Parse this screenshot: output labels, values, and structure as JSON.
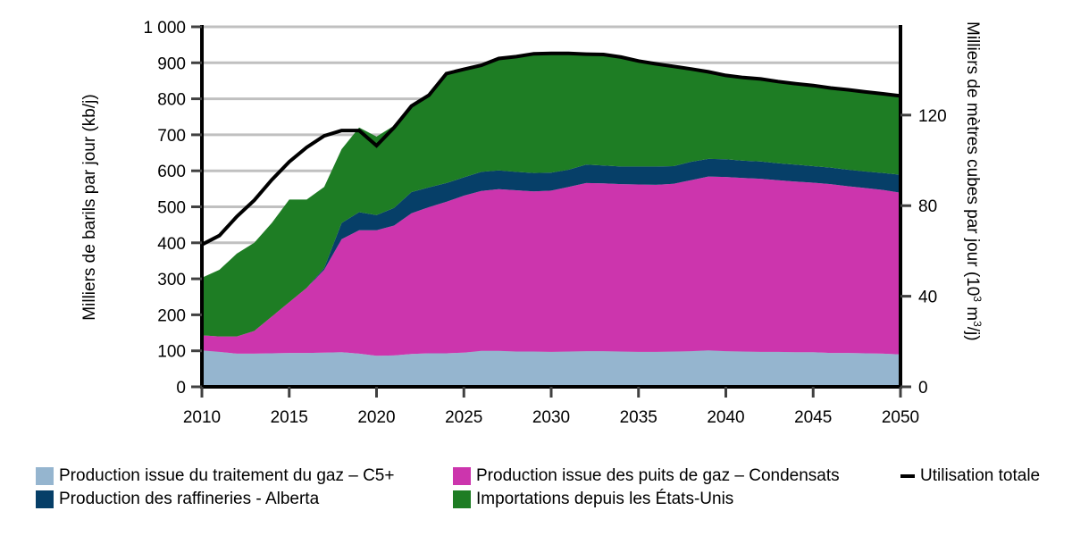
{
  "chart_data": {
    "type": "area",
    "stacked": true,
    "title": "",
    "xlabel": "",
    "ylabel": "Milliers de barils par jour (kb/j)",
    "y2label_main": "Milliers de mètres cubes par jour (10",
    "y2label_sup1": "3",
    "y2label_mid": " m",
    "y2label_sup2": "3",
    "y2label_end": "/j)",
    "xlim": [
      2010,
      2050
    ],
    "ylim": [
      0,
      1000
    ],
    "y2lim": [
      0,
      158.99
    ],
    "grid": true,
    "legend_position": "bottom",
    "x_ticks": [
      2010,
      2015,
      2020,
      2025,
      2030,
      2035,
      2040,
      2045,
      2050
    ],
    "x_tick_labels": [
      "2010",
      "2015",
      "2020",
      "2025",
      "2030",
      "2035",
      "2040",
      "2045",
      "2050"
    ],
    "y_ticks": [
      0,
      100,
      200,
      300,
      400,
      500,
      600,
      700,
      800,
      900,
      1000
    ],
    "y_tick_labels": [
      "0",
      "100",
      "200",
      "300",
      "400",
      "500",
      "600",
      "700",
      "800",
      "900",
      "1 000"
    ],
    "y2_ticks": [
      0,
      40,
      80,
      120
    ],
    "y2_tick_labels": [
      "0",
      "40",
      "80",
      "120"
    ],
    "x": [
      2010,
      2011,
      2012,
      2013,
      2014,
      2015,
      2016,
      2017,
      2018,
      2019,
      2020,
      2021,
      2022,
      2023,
      2024,
      2025,
      2026,
      2027,
      2028,
      2029,
      2030,
      2031,
      2032,
      2033,
      2034,
      2035,
      2036,
      2037,
      2038,
      2039,
      2040,
      2041,
      2042,
      2043,
      2044,
      2045,
      2046,
      2047,
      2048,
      2049,
      2050
    ],
    "series": [
      {
        "name": "Production issue du traitement du gaz – C5+",
        "color": "#95b5cf",
        "values": [
          101,
          97,
          92,
          92,
          93,
          94,
          94,
          95,
          96,
          92,
          86,
          87,
          91,
          93,
          93,
          95,
          100,
          100,
          98,
          98,
          97,
          98,
          99,
          99,
          98,
          97,
          97,
          98,
          99,
          101,
          99,
          98,
          97,
          97,
          96,
          96,
          94,
          94,
          93,
          92,
          90
        ]
      },
      {
        "name": "Production issue des puits de gaz – Condensats",
        "color": "#cc35ad",
        "values": [
          42,
          43,
          48,
          63,
          102,
          141,
          181,
          230,
          314,
          343,
          349,
          361,
          391,
          406,
          421,
          436,
          444,
          449,
          448,
          445,
          448,
          457,
          467,
          466,
          465,
          465,
          464,
          466,
          475,
          483,
          484,
          482,
          481,
          477,
          474,
          471,
          469,
          463,
          459,
          455,
          449
        ]
      },
      {
        "name": "Production des raffineries - Alberta",
        "color": "#063f68",
        "values": [
          0,
          0,
          0,
          0,
          0,
          0,
          0,
          5,
          45,
          50,
          42,
          49,
          59,
          55,
          52,
          51,
          53,
          52,
          51,
          51,
          50,
          48,
          51,
          50,
          49,
          50,
          51,
          49,
          51,
          49,
          49,
          48,
          48,
          47,
          47,
          46,
          46,
          46,
          46,
          47,
          50
        ]
      },
      {
        "name": "Importations depuis les États-Unis",
        "color": "#1e7d24",
        "values": [
          160,
          185,
          230,
          245,
          260,
          285,
          245,
          225,
          205,
          235,
          218,
          228,
          239,
          256,
          304,
          300,
          296,
          311,
          320,
          331,
          331,
          323,
          307,
          308,
          304,
          293,
          285,
          277,
          258,
          242,
          233,
          231,
          229,
          227,
          225,
          224,
          221,
          222,
          221,
          220,
          219
        ]
      }
    ],
    "line_series": {
      "name": "Utilisation totale",
      "color": "#000000",
      "values": [
        395,
        420,
        473,
        518,
        575,
        625,
        665,
        697,
        712,
        712,
        670,
        720,
        780,
        810,
        870,
        882,
        893,
        912,
        917,
        925,
        926,
        926,
        924,
        923,
        916,
        905,
        897,
        890,
        883,
        875,
        865,
        859,
        855,
        848,
        842,
        837,
        830,
        825,
        819,
        814,
        808
      ]
    }
  },
  "legend": {
    "items": [
      {
        "label": "Production issue du traitement du gaz – C5+",
        "color": "#95b5cf",
        "kind": "area"
      },
      {
        "label": "Production issue des puits de gaz – Condensats",
        "color": "#cc35ad",
        "kind": "area"
      },
      {
        "label": "Utilisation totale",
        "color": "#000000",
        "kind": "line"
      },
      {
        "label": "Production des raffineries - Alberta",
        "color": "#063f68",
        "kind": "area"
      },
      {
        "label": "Importations depuis les États-Unis",
        "color": "#1e7d24",
        "kind": "area"
      }
    ]
  },
  "colors": {
    "gridline": "#c0c0c0",
    "axis": "#000000",
    "tick": "#404040"
  }
}
